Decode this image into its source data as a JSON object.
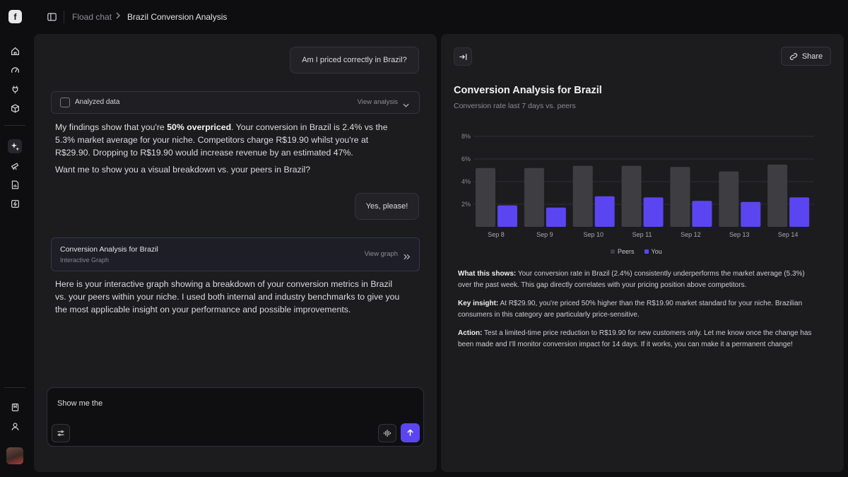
{
  "breadcrumb": {
    "root": "Fload chat",
    "current": "Brazil Conversion Analysis"
  },
  "rail": {
    "items": [
      "home-icon",
      "gauge-icon",
      "plug-icon",
      "cube-icon",
      "sparkle-icon",
      "telescope-icon",
      "file-chart-icon",
      "lightning-icon",
      "bookmark-icon",
      "user-icon"
    ],
    "active": "sparkle-icon"
  },
  "chat": {
    "user_msg_1": "Am I priced correctly in Brazil?",
    "analyzed": {
      "label": "Analyzed data",
      "action": "View analysis"
    },
    "reply_1": {
      "pre": "My findings show that you're ",
      "bold": "50% overpriced",
      "post": ". Your conversion in Brazil is 2.4% vs the 5.3% market average for your niche. Competitors charge R$19.90 whilst you're at R$29.90. Dropping to R$19.90 would increase revenue by an estimated 47%."
    },
    "reply_1b": "Want me to show you a visual breakdown vs. your peers in Brazil?",
    "user_msg_2": "Yes, please!",
    "graph_card": {
      "title": "Conversion Analysis for Brazil",
      "subtitle": "Interactive Graph",
      "action": "View graph"
    },
    "reply_2": "Here is your interactive graph showing a breakdown of your conversion metrics in Brazil vs. your peers within your niche. I used both internal and industry benchmarks to give you the most applicable insight on your performance and possible improvements.",
    "composer_value": "Show me the"
  },
  "panel": {
    "share_label": "Share",
    "title": "Conversion Analysis for Brazil",
    "subtitle": "Conversion rate last 7 days vs. peers",
    "insights": [
      {
        "label": "What this shows:",
        "text": " Your conversion rate in Brazil (2.4%) consistently underperforms the market average (5.3%) over the past week. This gap directly correlates with your pricing position above competitors."
      },
      {
        "label": "Key insight:",
        "text": " At R$29.90, you're priced 50% higher than the R$19.90 market standard for your niche. Brazilian consumers in this category are particularly price-sensitive."
      },
      {
        "label": "Action:",
        "text": " Test a limited-time price reduction to R$19.90 for new customers only. Let me know once the change has been made and I'll monitor conversion impact for 14 days. If it works, you can make it a permanent change!"
      }
    ]
  },
  "chart_data": {
    "type": "bar",
    "categories": [
      "Sep 8",
      "Sep 9",
      "Sep 10",
      "Sep 11",
      "Sep 12",
      "Sep 13",
      "Sep 14"
    ],
    "series": [
      {
        "name": "Peers",
        "color": "#3e3e42",
        "values": [
          5.2,
          5.2,
          5.4,
          5.4,
          5.3,
          4.9,
          5.5
        ]
      },
      {
        "name": "You",
        "color": "#5b45f0",
        "values": [
          1.9,
          1.7,
          2.7,
          2.6,
          2.3,
          2.2,
          2.6
        ]
      }
    ],
    "yticks": [
      "2%",
      "4%",
      "6%",
      "8%"
    ],
    "ylim": [
      0,
      8
    ],
    "grid": true,
    "legend": "bottom-center"
  }
}
